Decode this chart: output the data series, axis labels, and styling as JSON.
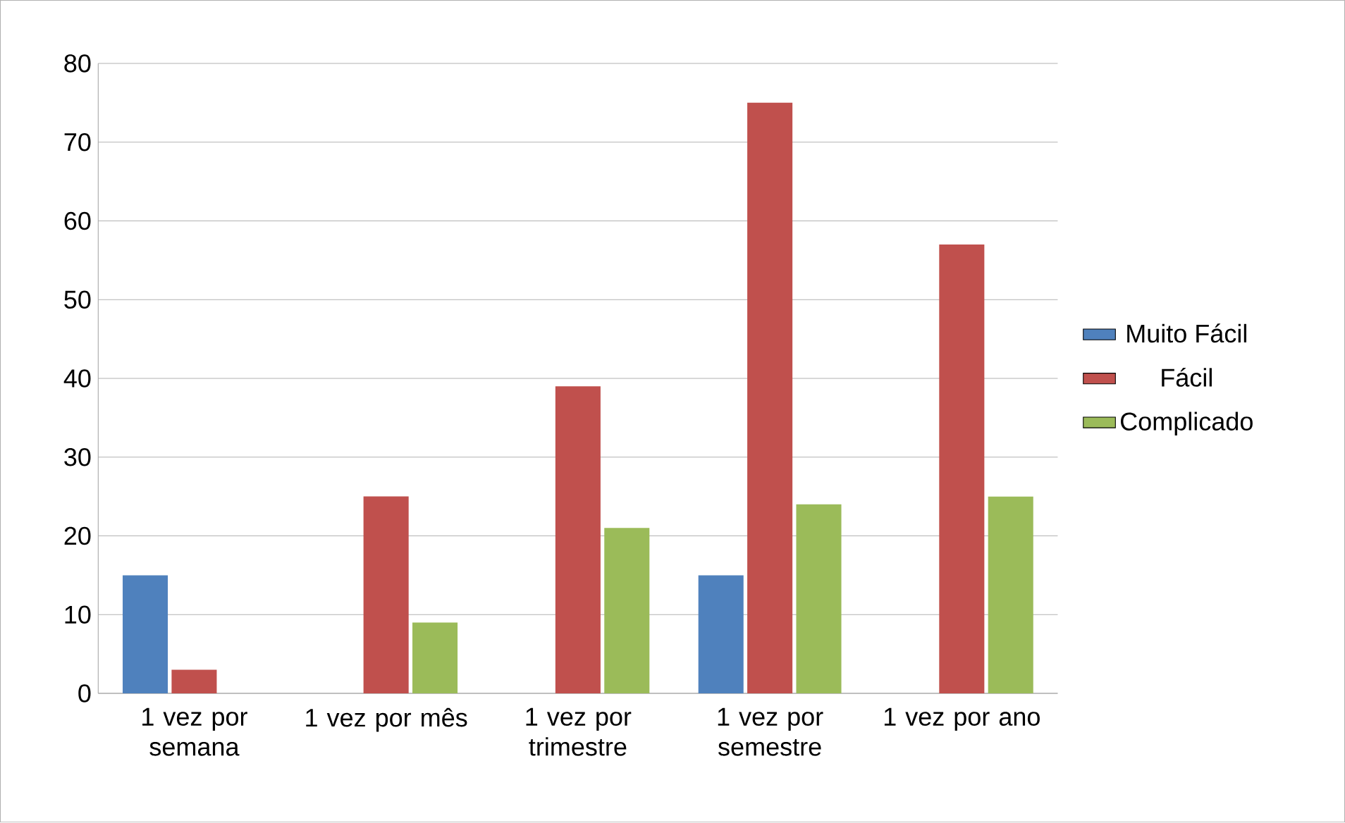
{
  "chart_data": {
    "type": "bar",
    "categories": [
      "1 vez por semana",
      "1 vez por mês",
      "1 vez por trimestre",
      "1 vez por semestre",
      "1 vez por ano"
    ],
    "series": [
      {
        "name": "Muito Fácil",
        "color": "#4f81bd",
        "values": [
          15,
          null,
          null,
          15,
          null
        ]
      },
      {
        "name": "Fácil",
        "color": "#c0504d",
        "values": [
          3,
          25,
          39,
          75,
          57
        ]
      },
      {
        "name": "Complicado",
        "color": "#9bbb59",
        "values": [
          null,
          9,
          21,
          24,
          25
        ]
      }
    ],
    "ylim": [
      0,
      80
    ],
    "yticks": [
      0,
      10,
      20,
      30,
      40,
      50,
      60,
      70,
      80
    ],
    "grid": "y",
    "legend": "right"
  }
}
